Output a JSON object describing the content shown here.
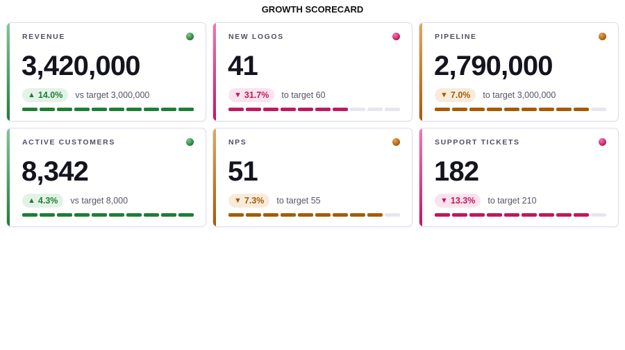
{
  "title": "GROWTH SCORECARD",
  "cards": [
    {
      "label": "REVENUE",
      "value": "3,420,000",
      "delta": "14.0%",
      "direction": "up",
      "note": "vs target 3,000,000",
      "progress": 1.0,
      "accent": "#1e7e34",
      "accent_light": "#7fc890",
      "pill_bg": "#e3f2e6",
      "pill_fg": "#1e7e34",
      "dot_icon": "green-status-dot-icon"
    },
    {
      "label": "NEW LOGOS",
      "value": "41",
      "delta": "31.7%",
      "direction": "down",
      "note": "to target 60",
      "progress": 0.7,
      "accent": "#c0185f",
      "accent_light": "#f07ab0",
      "pill_bg": "#fbe3ee",
      "pill_fg": "#c0185f",
      "dot_icon": "pink-status-dot-icon"
    },
    {
      "label": "PIPELINE",
      "value": "2,790,000",
      "delta": "7.0%",
      "direction": "down",
      "note": "to target 3,000,000",
      "progress": 0.9,
      "accent": "#a65b00",
      "accent_light": "#e0a860",
      "pill_bg": "#f8ebdc",
      "pill_fg": "#a65b00",
      "dot_icon": "orange-status-dot-icon"
    },
    {
      "label": "ACTIVE CUSTOMERS",
      "value": "8,342",
      "delta": "4.3%",
      "direction": "up",
      "note": "vs target 8,000",
      "progress": 1.0,
      "accent": "#1e7e34",
      "accent_light": "#7fc890",
      "pill_bg": "#e3f2e6",
      "pill_fg": "#1e7e34",
      "dot_icon": "green-status-dot-icon"
    },
    {
      "label": "NPS",
      "value": "51",
      "delta": "7.3%",
      "direction": "down",
      "note": "to target 55",
      "progress": 0.9,
      "accent": "#a65b00",
      "accent_light": "#e0a860",
      "pill_bg": "#f8ebdc",
      "pill_fg": "#a65b00",
      "dot_icon": "orange-status-dot-icon"
    },
    {
      "label": "SUPPORT TICKETS",
      "value": "182",
      "delta": "13.3%",
      "direction": "down",
      "note": "to target 210",
      "progress": 0.9,
      "accent": "#c0185f",
      "accent_light": "#f07ab0",
      "pill_bg": "#fbe3ee",
      "pill_fg": "#c0185f",
      "dot_icon": "pink-status-dot-icon"
    }
  ],
  "arrows": {
    "up": "▲",
    "down": "▼"
  },
  "track_color": "#e6e6f0"
}
